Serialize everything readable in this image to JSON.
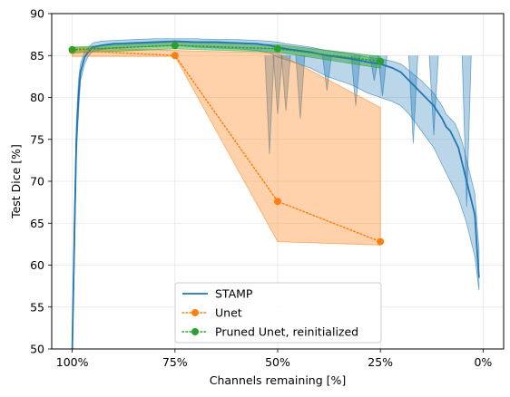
{
  "chart_data": {
    "type": "line",
    "title": "",
    "xlabel": "Channels remaining [%]",
    "ylabel": "Test Dice [%]",
    "xlim": [
      105,
      -5
    ],
    "ylim": [
      50,
      90
    ],
    "x_ticks": [
      100,
      75,
      50,
      25,
      0
    ],
    "x_tick_labels": [
      "100%",
      "75%",
      "50%",
      "25%",
      "0%"
    ],
    "y_ticks": [
      50,
      55,
      60,
      65,
      70,
      75,
      80,
      85,
      90
    ],
    "y_tick_labels": [
      "50",
      "55",
      "60",
      "65",
      "70",
      "75",
      "80",
      "85",
      "90"
    ],
    "grid": true,
    "legend_position": "bottom-center",
    "series": [
      {
        "name": "STAMP",
        "style": "solid",
        "color": "#1f77b4",
        "x": [
          100,
          99.5,
          99,
          98.5,
          98,
          97,
          96,
          95,
          93,
          90,
          85,
          80,
          75,
          70,
          65,
          60,
          55,
          52,
          50,
          48,
          45,
          42,
          40,
          38,
          35,
          32,
          30,
          28,
          25,
          22,
          20,
          18,
          15,
          12,
          10,
          9,
          8,
          7,
          6,
          5,
          4,
          3,
          2,
          1.5,
          1
        ],
        "y": [
          50,
          63,
          75,
          80,
          83,
          84.8,
          85.5,
          86,
          86.2,
          86.4,
          86.5,
          86.6,
          86.7,
          86.6,
          86.6,
          86.5,
          86.4,
          86.2,
          86,
          85.8,
          85.6,
          85.4,
          85.2,
          85,
          84.8,
          84.6,
          84.4,
          84.2,
          84,
          83.5,
          83,
          82,
          80.5,
          79,
          77.5,
          76.5,
          76,
          75,
          74,
          72,
          70,
          68,
          66,
          62,
          58.5
        ],
        "band_upper": [
          51,
          66,
          77,
          82,
          84,
          85.5,
          86,
          86.5,
          86.7,
          86.8,
          86.9,
          87,
          87,
          87,
          86.9,
          86.9,
          86.8,
          86.7,
          86.6,
          86.4,
          86.2,
          86,
          85.8,
          85.6,
          85.4,
          85.2,
          85,
          84.8,
          84.6,
          84.3,
          84,
          83.2,
          82,
          80.5,
          79,
          78,
          77.5,
          77,
          76,
          74.5,
          72.5,
          70.5,
          68.5,
          65,
          62
        ],
        "band_lower": [
          50,
          60,
          73,
          78,
          82,
          84,
          85,
          85.5,
          85.7,
          85.9,
          86,
          86.1,
          86.2,
          86,
          85.9,
          85.8,
          85.6,
          85.3,
          84.8,
          84.5,
          84,
          83.5,
          83,
          82.5,
          82,
          81.5,
          81,
          80.5,
          80,
          79.5,
          79,
          78,
          76,
          74,
          72,
          71,
          70,
          69,
          68,
          66.5,
          65,
          63,
          61,
          59,
          57
        ],
        "spikes": [
          {
            "x": 52,
            "y": 73.2
          },
          {
            "x": 50,
            "y": 78.0
          },
          {
            "x": 48,
            "y": 78.4
          },
          {
            "x": 44.5,
            "y": 77.5
          },
          {
            "x": 38,
            "y": 80.8
          },
          {
            "x": 31,
            "y": 79.0
          },
          {
            "x": 26.5,
            "y": 82.0
          },
          {
            "x": 24.5,
            "y": 80.2
          },
          {
            "x": 17,
            "y": 74.5
          },
          {
            "x": 12,
            "y": 75.5
          },
          {
            "x": 4,
            "y": 67.0
          }
        ]
      },
      {
        "name": "Unet",
        "style": "dotted",
        "marker": "circle",
        "color": "#ff7f0e",
        "x": [
          100,
          75,
          50,
          25
        ],
        "y": [
          85.6,
          85.0,
          67.6,
          62.8
        ],
        "band_upper": [
          86.0,
          85.6,
          85.3,
          78.8
        ],
        "band_lower": [
          84.9,
          84.9,
          62.8,
          62.4
        ]
      },
      {
        "name": "Pruned Unet, reinitialized",
        "style": "dotted",
        "marker": "circle",
        "color": "#2ca02c",
        "x": [
          100,
          75,
          50,
          25
        ],
        "y": [
          85.7,
          86.2,
          85.8,
          84.3
        ],
        "band_upper": [
          86.0,
          86.6,
          86.3,
          84.9
        ],
        "band_lower": [
          85.3,
          85.8,
          85.4,
          83.5
        ]
      }
    ]
  }
}
